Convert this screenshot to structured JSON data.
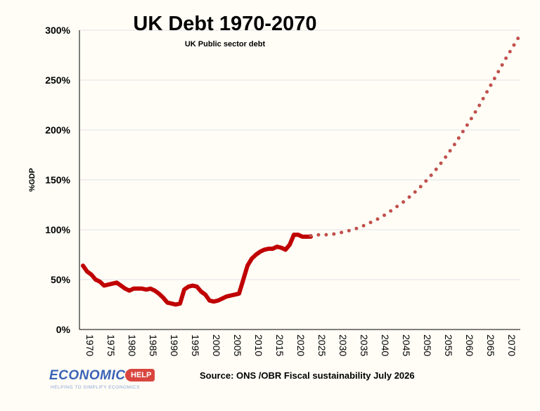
{
  "chart_data": {
    "type": "line",
    "title": "UK Debt 1970-2070",
    "subtitle": "UK Public sector debt",
    "ylabel": "%GDP",
    "xlabel": "",
    "ylim": [
      0,
      300
    ],
    "xlim": [
      1970,
      2074
    ],
    "yticks": [
      "0%",
      "50%",
      "100%",
      "150%",
      "200%",
      "250%",
      "300%"
    ],
    "xticks": [
      "1970",
      "1975",
      "1980",
      "1985",
      "1990",
      "1995",
      "2000",
      "2005",
      "2010",
      "2015",
      "2020",
      "2025",
      "2030",
      "2035",
      "2040",
      "2045",
      "2050",
      "2055",
      "2060",
      "2065",
      "2070"
    ],
    "grid": true,
    "legend": "none",
    "source": "Source: ONS /OBR Fiscal sustainability July 2026",
    "series": [
      {
        "style": "solid",
        "color": "#c00000",
        "x": [
          1970,
          1971,
          1972,
          1973,
          1974,
          1975,
          1976,
          1977,
          1978,
          1979,
          1980,
          1981,
          1982,
          1983,
          1984,
          1985,
          1986,
          1987,
          1988,
          1989,
          1990,
          1991,
          1992,
          1993,
          1994,
          1995,
          1996,
          1997,
          1998,
          1999,
          2000,
          2001,
          2002,
          2003,
          2004,
          2005,
          2006,
          2007,
          2008,
          2009,
          2010,
          2011,
          2012,
          2013,
          2014,
          2015,
          2016,
          2017,
          2018,
          2019,
          2020,
          2021,
          2022,
          2023,
          2024
        ],
        "y": [
          64,
          58,
          55,
          50,
          48,
          44,
          45,
          46,
          47,
          44,
          41,
          39,
          41,
          41,
          41,
          40,
          41,
          39,
          36,
          32,
          27,
          26,
          25,
          26,
          40,
          43,
          44,
          43,
          38,
          35,
          29,
          28,
          29,
          31,
          33,
          34,
          35,
          36,
          50,
          64,
          71,
          75,
          78,
          80,
          81,
          81,
          83,
          82,
          80,
          85,
          95,
          95,
          93,
          93,
          93
        ]
      },
      {
        "style": "dotted",
        "color": "#c0504d",
        "x": [
          2024,
          2026,
          2028,
          2030,
          2032,
          2034,
          2036,
          2038,
          2040,
          2042,
          2044,
          2046,
          2048,
          2050,
          2052,
          2054,
          2056,
          2058,
          2060,
          2062,
          2064,
          2066,
          2068,
          2070,
          2072,
          2074
        ],
        "y": [
          94,
          95,
          95,
          96,
          98,
          100,
          103,
          107,
          111,
          116,
          122,
          128,
          135,
          143,
          152,
          162,
          173,
          185,
          198,
          211,
          225,
          240,
          255,
          270,
          284,
          298
        ]
      }
    ]
  },
  "branding": {
    "logo_main": "ECONOMICS",
    "logo_badge": "HELP",
    "logo_tagline": "HELPING TO SIMPLIFY ECONOMICS"
  }
}
